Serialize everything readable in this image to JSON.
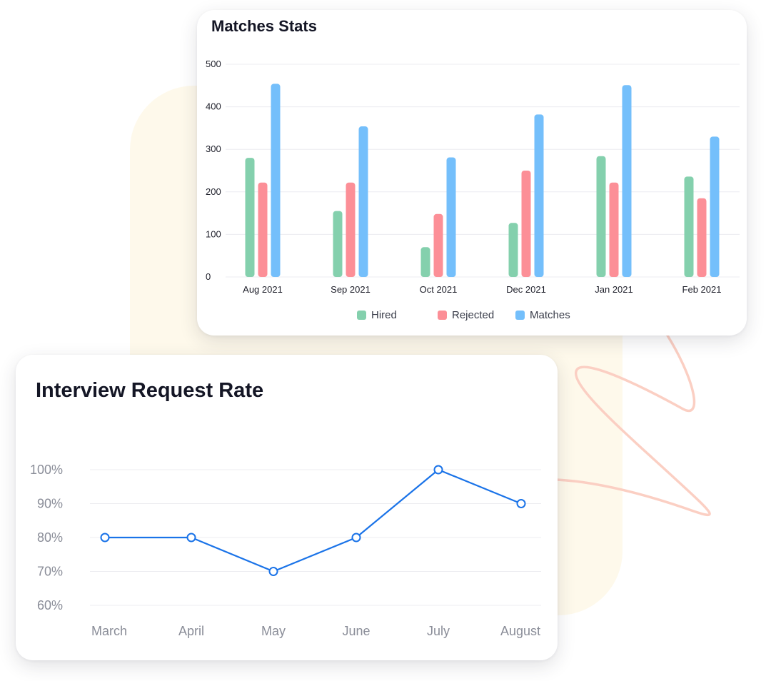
{
  "colors": {
    "hired": "#84d0ad",
    "rejected": "#fc8f97",
    "matches": "#74bffb",
    "line": "#1a73e8",
    "background_blob": "#fef9eb",
    "squiggle": "#fbcfc3"
  },
  "chart_data": [
    {
      "type": "bar",
      "title": "Matches Stats",
      "xlabel": "",
      "ylabel": "",
      "ylim": [
        0,
        500
      ],
      "yticks": [
        "0",
        "100",
        "200",
        "300",
        "400",
        "500"
      ],
      "categories": [
        "Aug 2021",
        "Sep 2021",
        "Oct 2021",
        "Dec 2021",
        "Jan 2021",
        "Feb 2021"
      ],
      "series": [
        {
          "name": "Hired",
          "values": [
            280,
            155,
            70,
            127,
            284,
            236
          ]
        },
        {
          "name": "Rejected",
          "values": [
            222,
            222,
            148,
            250,
            222,
            185
          ]
        },
        {
          "name": "Matches",
          "values": [
            454,
            354,
            281,
            382,
            451,
            330
          ]
        }
      ],
      "grid": true,
      "legend_position": "bottom"
    },
    {
      "type": "line",
      "title": "Interview Request Rate",
      "xlabel": "",
      "ylabel": "",
      "ylim": [
        60,
        100
      ],
      "yticks": [
        "60%",
        "70%",
        "80%",
        "90%",
        "100%"
      ],
      "categories": [
        "March",
        "April",
        "May",
        "June",
        "July",
        "August"
      ],
      "series": [
        {
          "values": [
            80,
            80,
            70,
            80,
            100,
            90
          ]
        }
      ],
      "grid": true
    }
  ]
}
